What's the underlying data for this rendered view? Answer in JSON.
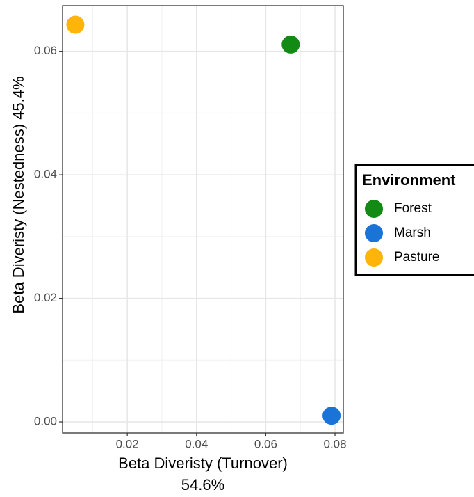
{
  "chart_data": {
    "type": "scatter",
    "x_label": [
      "Beta Diveristy (Turnover)",
      "54.6%"
    ],
    "y_label": "Beta Diveristy (Nestedness) 45.4%",
    "legend_title": "Environment",
    "xlim": [
      0.0013,
      0.0824
    ],
    "ylim": [
      -0.0018,
      0.0674
    ],
    "xticks": [
      0.02,
      0.04,
      0.06,
      0.08
    ],
    "yticks": [
      {
        "value": 0,
        "label": "0.00"
      },
      0.02,
      0.04,
      0.06
    ],
    "x_minor_ticks": [
      0.01,
      0.03,
      0.05,
      0.07
    ],
    "y_minor_ticks": [
      0.01,
      0.03,
      0.05
    ],
    "grid": true,
    "series": [
      {
        "name": "Forest",
        "color": "#138a13",
        "x": [
          0.0672
        ],
        "values": [
          0.0611
        ]
      },
      {
        "name": "Marsh",
        "color": "#1a73d6",
        "x": [
          0.079
        ],
        "values": [
          0.001
        ]
      },
      {
        "name": "Pasture",
        "color": "#ffb40a",
        "x": [
          0.005
        ],
        "values": [
          0.0643
        ]
      }
    ]
  }
}
